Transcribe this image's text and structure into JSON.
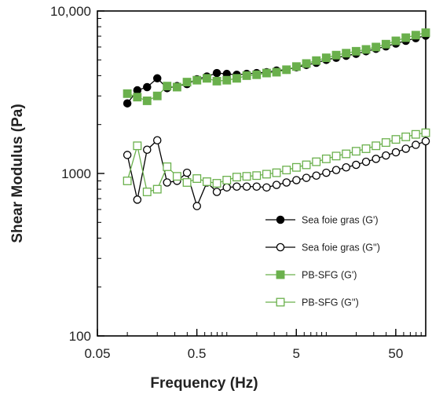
{
  "chart_data": {
    "type": "line",
    "xlabel": "Frequency (Hz)",
    "ylabel": "Shear Modulus (Pa)",
    "xscale": "log",
    "yscale": "log",
    "xlim": [
      0.05,
      100
    ],
    "ylim": [
      100,
      10000
    ],
    "xticks": [
      {
        "value": 0.05,
        "label": "0.05"
      },
      {
        "value": 0.5,
        "label": "0.5"
      },
      {
        "value": 5,
        "label": "5"
      },
      {
        "value": 50,
        "label": "50"
      }
    ],
    "yticks": [
      {
        "value": 100,
        "label": "100"
      },
      {
        "value": 1000,
        "label": "1000"
      },
      {
        "value": 10000,
        "label": "10,000"
      }
    ],
    "grid": false,
    "legend_position": "lower-right",
    "series": [
      {
        "name": "Sea foie gras (G')",
        "color": "#000000",
        "marker": "circle",
        "filled": true,
        "points": [
          [
            0.1,
            2700
          ],
          [
            0.126,
            3250
          ],
          [
            0.158,
            3400
          ],
          [
            0.2,
            3850
          ],
          [
            0.251,
            3350
          ],
          [
            0.316,
            3450
          ],
          [
            0.398,
            3550
          ],
          [
            0.501,
            3800
          ],
          [
            0.631,
            3950
          ],
          [
            0.794,
            4150
          ],
          [
            1.0,
            4100
          ],
          [
            1.259,
            4050
          ],
          [
            1.585,
            4100
          ],
          [
            1.995,
            4150
          ],
          [
            2.512,
            4200
          ],
          [
            3.162,
            4300
          ],
          [
            3.981,
            4350
          ],
          [
            5.012,
            4500
          ],
          [
            6.31,
            4650
          ],
          [
            7.943,
            4800
          ],
          [
            10.0,
            5000
          ],
          [
            12.59,
            5150
          ],
          [
            15.85,
            5300
          ],
          [
            19.95,
            5450
          ],
          [
            25.12,
            5650
          ],
          [
            31.62,
            5850
          ],
          [
            39.81,
            6050
          ],
          [
            50.12,
            6300
          ],
          [
            63.1,
            6550
          ],
          [
            79.43,
            6800
          ],
          [
            100.0,
            7050
          ]
        ]
      },
      {
        "name": "Sea foie gras (G'')",
        "color": "#000000",
        "marker": "circle",
        "filled": false,
        "points": [
          [
            0.1,
            1300
          ],
          [
            0.126,
            690
          ],
          [
            0.158,
            1400
          ],
          [
            0.2,
            1600
          ],
          [
            0.251,
            880
          ],
          [
            0.316,
            900
          ],
          [
            0.398,
            1010
          ],
          [
            0.501,
            630
          ],
          [
            0.631,
            880
          ],
          [
            0.794,
            770
          ],
          [
            1.0,
            820
          ],
          [
            1.259,
            830
          ],
          [
            1.585,
            830
          ],
          [
            1.995,
            830
          ],
          [
            2.512,
            820
          ],
          [
            3.162,
            850
          ],
          [
            3.981,
            880
          ],
          [
            5.012,
            910
          ],
          [
            6.31,
            940
          ],
          [
            7.943,
            970
          ],
          [
            10.0,
            1010
          ],
          [
            12.59,
            1050
          ],
          [
            15.85,
            1090
          ],
          [
            19.95,
            1130
          ],
          [
            25.12,
            1180
          ],
          [
            31.62,
            1230
          ],
          [
            39.81,
            1290
          ],
          [
            50.12,
            1350
          ],
          [
            63.1,
            1420
          ],
          [
            79.43,
            1500
          ],
          [
            100.0,
            1580
          ]
        ]
      },
      {
        "name": "PB-SFG (G')",
        "color": "#6ab04c",
        "marker": "square",
        "filled": true,
        "points": [
          [
            0.1,
            3100
          ],
          [
            0.126,
            2950
          ],
          [
            0.158,
            2800
          ],
          [
            0.2,
            3000
          ],
          [
            0.251,
            3450
          ],
          [
            0.316,
            3400
          ],
          [
            0.398,
            3650
          ],
          [
            0.501,
            3750
          ],
          [
            0.631,
            3850
          ],
          [
            0.794,
            3700
          ],
          [
            1.0,
            3750
          ],
          [
            1.259,
            3850
          ],
          [
            1.585,
            4000
          ],
          [
            1.995,
            4050
          ],
          [
            2.512,
            4150
          ],
          [
            3.162,
            4200
          ],
          [
            3.981,
            4350
          ],
          [
            5.012,
            4550
          ],
          [
            6.31,
            4750
          ],
          [
            7.943,
            4950
          ],
          [
            10.0,
            5150
          ],
          [
            12.59,
            5350
          ],
          [
            15.85,
            5500
          ],
          [
            19.95,
            5650
          ],
          [
            25.12,
            5800
          ],
          [
            31.62,
            6000
          ],
          [
            39.81,
            6250
          ],
          [
            50.12,
            6550
          ],
          [
            63.1,
            6850
          ],
          [
            79.43,
            7100
          ],
          [
            100.0,
            7350
          ]
        ]
      },
      {
        "name": "PB-SFG (G'')",
        "color": "#6ab04c",
        "marker": "square",
        "filled": false,
        "points": [
          [
            0.1,
            900
          ],
          [
            0.126,
            1480
          ],
          [
            0.158,
            770
          ],
          [
            0.2,
            800
          ],
          [
            0.251,
            1100
          ],
          [
            0.316,
            960
          ],
          [
            0.398,
            880
          ],
          [
            0.501,
            930
          ],
          [
            0.631,
            890
          ],
          [
            0.794,
            870
          ],
          [
            1.0,
            910
          ],
          [
            1.259,
            950
          ],
          [
            1.585,
            960
          ],
          [
            1.995,
            970
          ],
          [
            2.512,
            990
          ],
          [
            3.162,
            1010
          ],
          [
            3.981,
            1050
          ],
          [
            5.012,
            1090
          ],
          [
            6.31,
            1130
          ],
          [
            7.943,
            1180
          ],
          [
            10.0,
            1230
          ],
          [
            12.59,
            1280
          ],
          [
            15.85,
            1320
          ],
          [
            19.95,
            1370
          ],
          [
            25.12,
            1420
          ],
          [
            31.62,
            1480
          ],
          [
            39.81,
            1550
          ],
          [
            50.12,
            1620
          ],
          [
            63.1,
            1680
          ],
          [
            79.43,
            1740
          ],
          [
            100.0,
            1780
          ]
        ]
      }
    ]
  }
}
